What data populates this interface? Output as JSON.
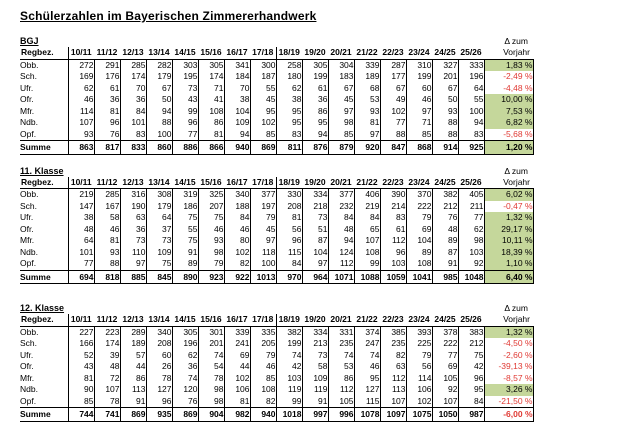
{
  "title": "Schülerzahlen im Bayerischen Zimmererhandwerk",
  "columns": {
    "region_header": "Regbez.",
    "years": [
      "10/11",
      "11/12",
      "12/13",
      "13/14",
      "14/15",
      "15/16",
      "16/17",
      "17/18",
      "18/19",
      "19/20",
      "20/21",
      "21/22",
      "22/23",
      "23/24",
      "24/25",
      "25/26"
    ],
    "delta_header_line1": "Δ zum",
    "delta_header_line2": "Vorjahr"
  },
  "colors": {
    "positive_bg": "#c5d79b",
    "negative_text": "#e03a34",
    "border": "#000000"
  },
  "tables": [
    {
      "label": "BGJ",
      "rows": [
        {
          "region": "Obb.",
          "values": [
            272,
            291,
            285,
            282,
            303,
            305,
            341,
            300,
            258,
            305,
            304,
            339,
            287,
            310,
            327,
            333
          ],
          "delta": "1,83 %",
          "trend": "positive"
        },
        {
          "region": "Sch.",
          "values": [
            169,
            176,
            174,
            179,
            195,
            174,
            184,
            187,
            180,
            199,
            183,
            189,
            177,
            199,
            201,
            196
          ],
          "delta": "-2,49 %",
          "trend": "negative"
        },
        {
          "region": "Ufr.",
          "values": [
            62,
            61,
            70,
            67,
            73,
            71,
            70,
            55,
            62,
            61,
            67,
            68,
            67,
            60,
            67,
            64
          ],
          "delta": "-4,48 %",
          "trend": "negative"
        },
        {
          "region": "Ofr.",
          "values": [
            46,
            36,
            36,
            50,
            43,
            41,
            38,
            45,
            38,
            36,
            45,
            53,
            49,
            46,
            50,
            55
          ],
          "delta": "10,00 %",
          "trend": "positive"
        },
        {
          "region": "Mfr.",
          "values": [
            114,
            81,
            84,
            94,
            99,
            108,
            104,
            95,
            95,
            86,
            97,
            93,
            102,
            97,
            93,
            100
          ],
          "delta": "7,53 %",
          "trend": "positive"
        },
        {
          "region": "Ndb.",
          "values": [
            107,
            96,
            101,
            88,
            96,
            86,
            109,
            102,
            95,
            95,
            98,
            81,
            77,
            71,
            88,
            94
          ],
          "delta": "6,82 %",
          "trend": "positive"
        },
        {
          "region": "Opf.",
          "values": [
            93,
            76,
            83,
            100,
            77,
            81,
            94,
            85,
            83,
            94,
            85,
            97,
            88,
            85,
            88,
            83
          ],
          "delta": "-5,68 %",
          "trend": "negative"
        }
      ],
      "sum": {
        "region": "Summe",
        "values": [
          863,
          817,
          833,
          860,
          886,
          866,
          940,
          869,
          811,
          876,
          879,
          920,
          847,
          868,
          914,
          925
        ],
        "delta": "1,20 %",
        "trend": "positive"
      }
    },
    {
      "label": "11. Klasse",
      "rows": [
        {
          "region": "Obb.",
          "values": [
            219,
            285,
            316,
            308,
            319,
            325,
            340,
            377,
            330,
            334,
            377,
            406,
            390,
            370,
            382,
            405
          ],
          "delta": "6,02 %",
          "trend": "positive"
        },
        {
          "region": "Sch.",
          "values": [
            147,
            167,
            190,
            179,
            186,
            207,
            188,
            197,
            208,
            218,
            232,
            219,
            214,
            222,
            212,
            211
          ],
          "delta": "-0,47 %",
          "trend": "negative"
        },
        {
          "region": "Ufr.",
          "values": [
            38,
            58,
            63,
            64,
            75,
            75,
            84,
            79,
            81,
            73,
            84,
            84,
            83,
            79,
            76,
            77
          ],
          "delta": "1,32 %",
          "trend": "positive"
        },
        {
          "region": "Ofr.",
          "values": [
            48,
            46,
            36,
            37,
            55,
            46,
            46,
            45,
            56,
            51,
            48,
            65,
            61,
            69,
            48,
            62
          ],
          "delta": "29,17 %",
          "trend": "positive"
        },
        {
          "region": "Mfr.",
          "values": [
            64,
            81,
            73,
            73,
            75,
            93,
            80,
            97,
            96,
            87,
            94,
            107,
            112,
            104,
            89,
            98
          ],
          "delta": "10,11 %",
          "trend": "positive"
        },
        {
          "region": "Ndb.",
          "values": [
            101,
            93,
            110,
            109,
            91,
            98,
            102,
            118,
            115,
            104,
            124,
            108,
            96,
            89,
            87,
            103
          ],
          "delta": "18,39 %",
          "trend": "positive"
        },
        {
          "region": "Opf.",
          "values": [
            77,
            88,
            97,
            75,
            89,
            79,
            82,
            100,
            84,
            97,
            112,
            99,
            103,
            108,
            91,
            92
          ],
          "delta": "1,10 %",
          "trend": "positive"
        }
      ],
      "sum": {
        "region": "Summe",
        "values": [
          694,
          818,
          885,
          845,
          890,
          923,
          922,
          1013,
          970,
          964,
          1071,
          1088,
          1059,
          1041,
          985,
          1048
        ],
        "delta": "6,40 %",
        "trend": "positive"
      }
    },
    {
      "label": "12. Klasse",
      "rows": [
        {
          "region": "Obb.",
          "values": [
            227,
            223,
            289,
            340,
            305,
            301,
            339,
            335,
            382,
            334,
            331,
            374,
            385,
            393,
            378,
            383
          ],
          "delta": "1,32 %",
          "trend": "positive"
        },
        {
          "region": "Sch.",
          "values": [
            166,
            174,
            189,
            208,
            196,
            201,
            241,
            205,
            199,
            213,
            235,
            247,
            235,
            225,
            222,
            212
          ],
          "delta": "-4,50 %",
          "trend": "negative"
        },
        {
          "region": "Ufr.",
          "values": [
            52,
            39,
            57,
            60,
            62,
            74,
            69,
            79,
            74,
            73,
            74,
            74,
            82,
            79,
            77,
            75
          ],
          "delta": "-2,60 %",
          "trend": "negative"
        },
        {
          "region": "Ofr.",
          "values": [
            43,
            48,
            44,
            26,
            36,
            54,
            44,
            46,
            42,
            58,
            53,
            46,
            63,
            56,
            69,
            42
          ],
          "delta": "-39,13 %",
          "trend": "negative"
        },
        {
          "region": "Mfr.",
          "values": [
            81,
            72,
            86,
            78,
            74,
            78,
            102,
            85,
            103,
            109,
            86,
            95,
            112,
            114,
            105,
            96
          ],
          "delta": "-8,57 %",
          "trend": "negative"
        },
        {
          "region": "Ndb.",
          "values": [
            90,
            107,
            113,
            127,
            120,
            98,
            106,
            108,
            119,
            119,
            112,
            127,
            113,
            106,
            92,
            95
          ],
          "delta": "3,26 %",
          "trend": "positive"
        },
        {
          "region": "Opf.",
          "values": [
            85,
            78,
            91,
            96,
            76,
            98,
            81,
            82,
            99,
            91,
            105,
            115,
            107,
            102,
            107,
            84
          ],
          "delta": "-21,50 %",
          "trend": "negative"
        }
      ],
      "sum": {
        "region": "Summe",
        "values": [
          744,
          741,
          869,
          935,
          869,
          904,
          982,
          940,
          1018,
          997,
          996,
          1078,
          1097,
          1075,
          1050,
          987
        ],
        "delta": "-6,00 %",
        "trend": "negative"
      }
    }
  ]
}
